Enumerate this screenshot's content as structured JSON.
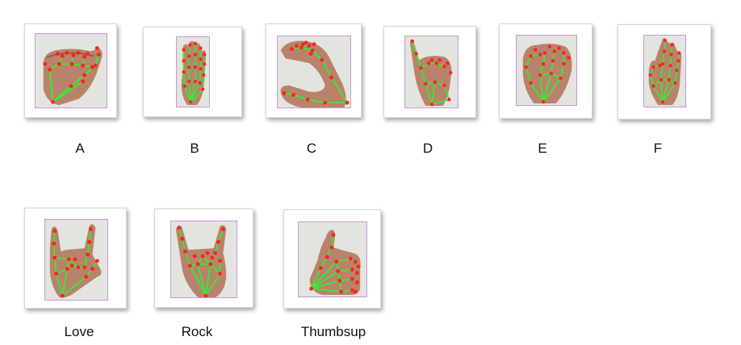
{
  "figures": [
    {
      "id": "A",
      "label": "A"
    },
    {
      "id": "B",
      "label": "B"
    },
    {
      "id": "C",
      "label": "C"
    },
    {
      "id": "D",
      "label": "D"
    },
    {
      "id": "E",
      "label": "E"
    },
    {
      "id": "F",
      "label": "F"
    },
    {
      "id": "love",
      "label": "Love"
    },
    {
      "id": "rock",
      "label": "Rock"
    },
    {
      "id": "thumbsup",
      "label": "Thumbsup"
    }
  ],
  "colors": {
    "landmark": "#ff2222",
    "connection": "#33ee33",
    "skin": "#b8836a",
    "background": "#e3e4df"
  }
}
